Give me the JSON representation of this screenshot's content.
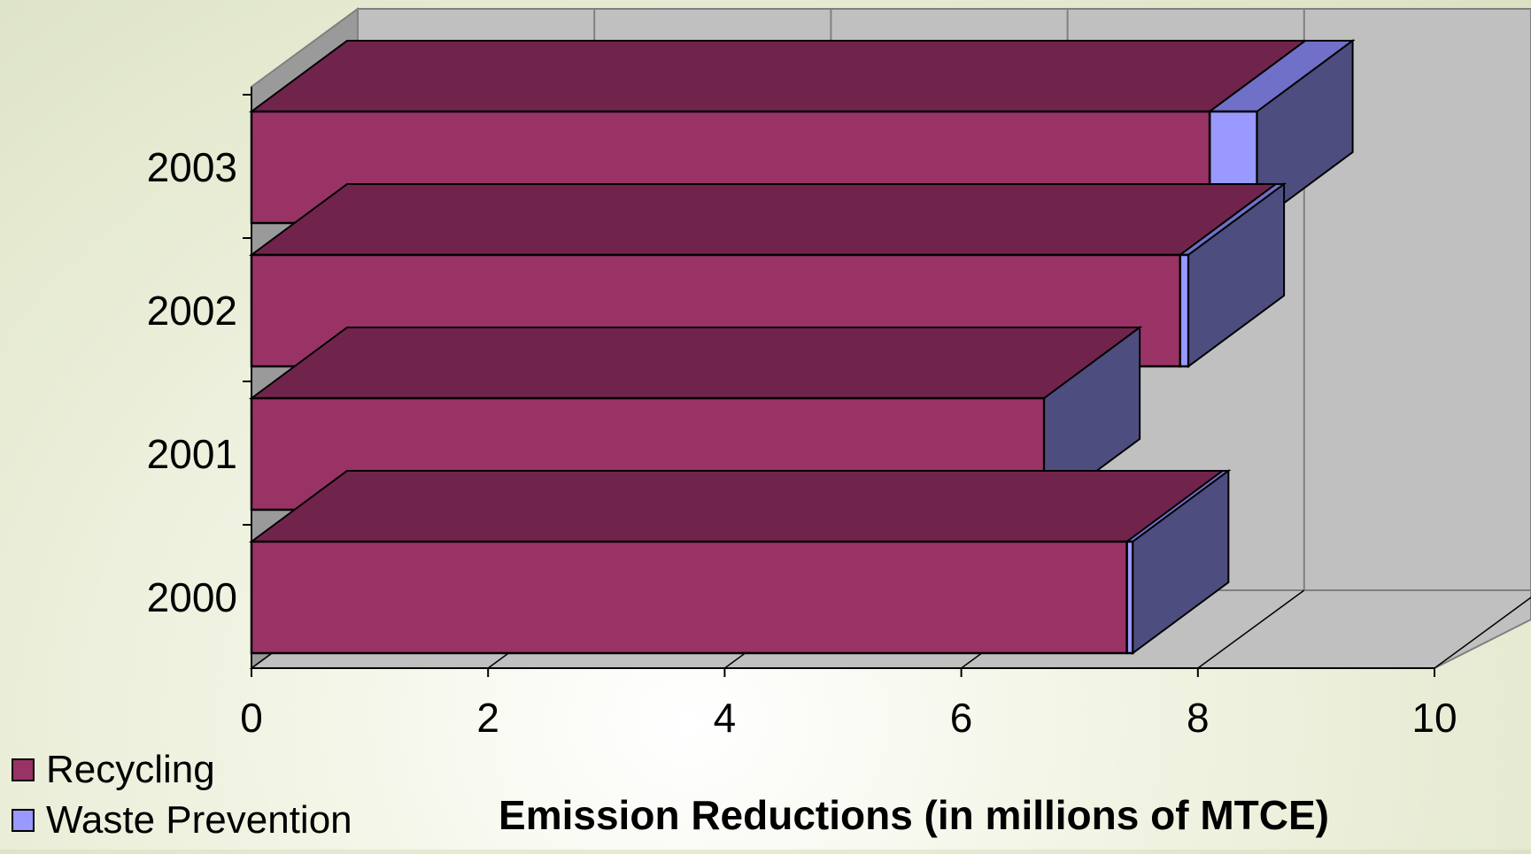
{
  "chart_data": {
    "type": "bar",
    "orientation": "horizontal",
    "stacked": true,
    "three_d": true,
    "categories": [
      "2000",
      "2001",
      "2002",
      "2003"
    ],
    "series": [
      {
        "name": "Recycling",
        "values": [
          7.4,
          6.7,
          7.85,
          8.1
        ]
      },
      {
        "name": "Waste Prevention",
        "values": [
          0.05,
          0.0,
          0.07,
          0.4
        ]
      }
    ],
    "colors": {
      "Recycling": "#993366",
      "Waste Prevention": "#9999FF",
      "wall": "#C0C0C0",
      "floor": "#C0C0C0"
    },
    "xlabel": "Emission Reductions (in millions of MTCE)",
    "ylabel": "",
    "title": "",
    "xlim": [
      0,
      10
    ],
    "xticks": [
      "0",
      "2",
      "4",
      "6",
      "8",
      "10"
    ],
    "grid": true,
    "legend": "bottom-left"
  }
}
